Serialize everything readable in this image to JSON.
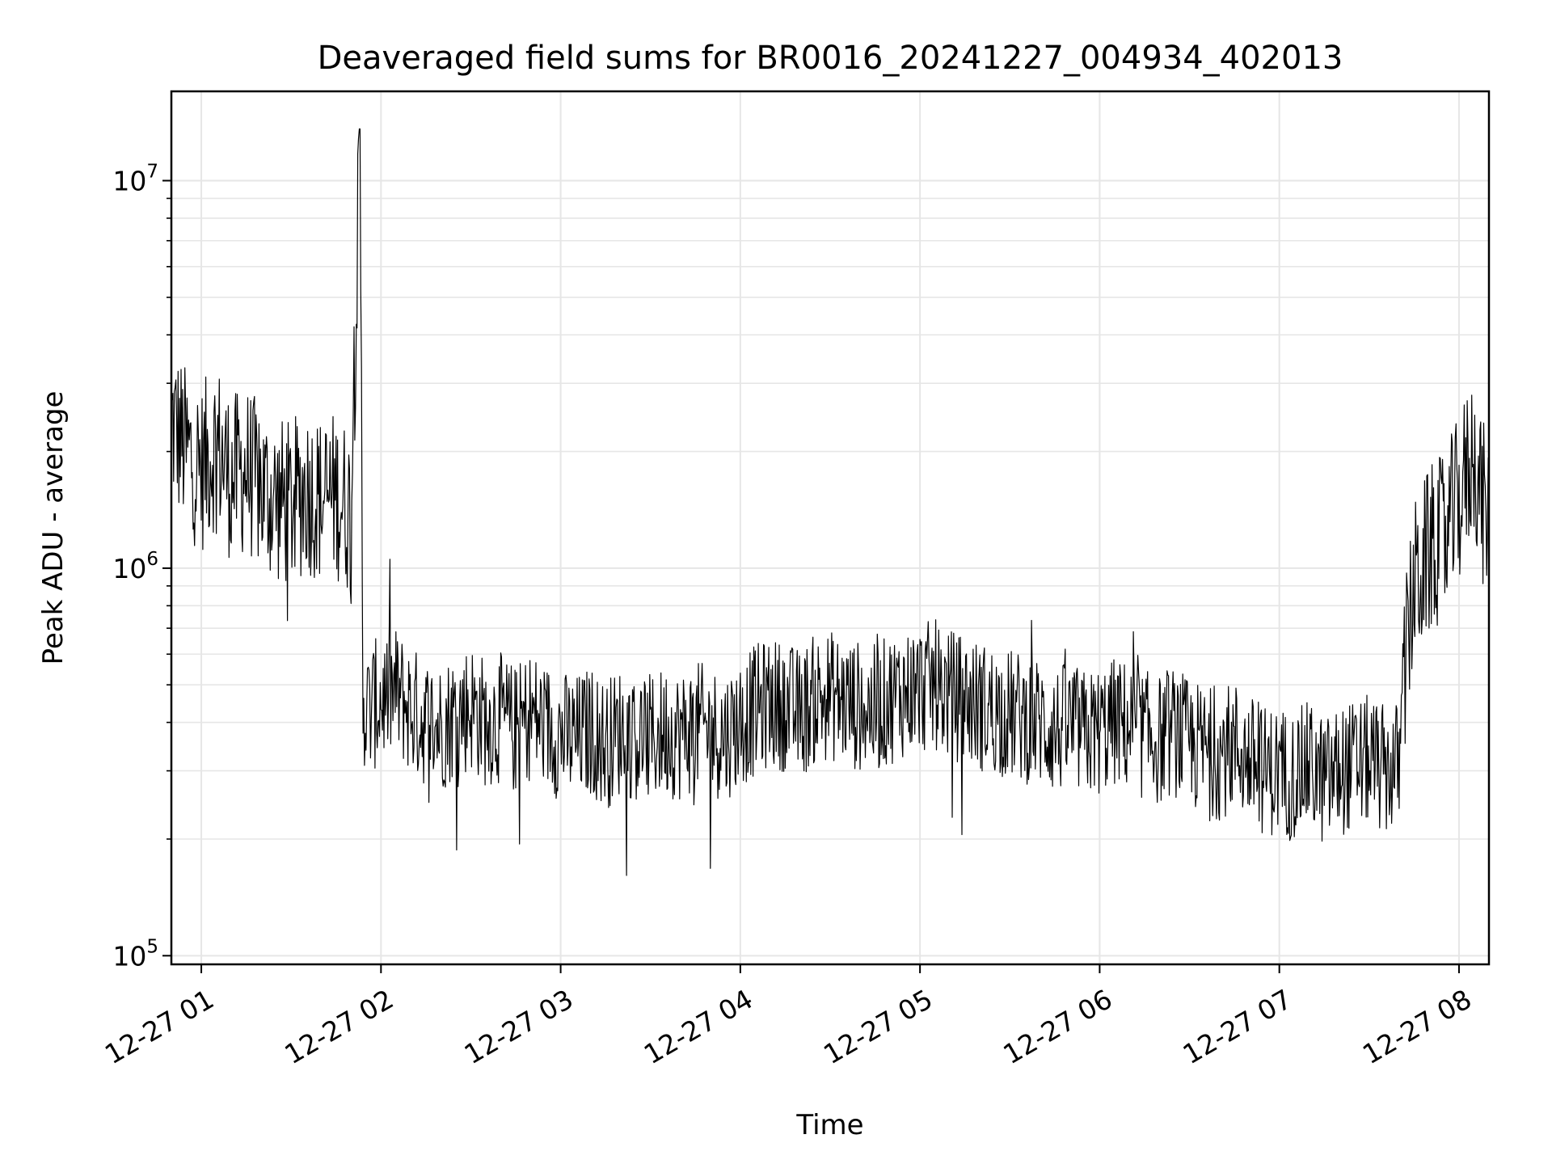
{
  "chart_data": {
    "type": "line",
    "title": "Deaveraged field sums for BR0016_20241227_004934_402013",
    "xlabel": "Time",
    "ylabel": "Peak ADU - average",
    "yscale": "log",
    "xlim": [
      "12-27 00:50",
      "12-27 08:10"
    ],
    "ylim": [
      95000,
      17000000
    ],
    "grid": true,
    "colors": {
      "line": "#000000",
      "grid": "#e6e6e6"
    },
    "x_ticks": [
      "12-27 01",
      "12-27 02",
      "12-27 03",
      "12-27 04",
      "12-27 05",
      "12-27 06",
      "12-27 07",
      "12-27 08"
    ],
    "y_ticks": [
      {
        "base": "10",
        "exp": "5",
        "value": 100000
      },
      {
        "base": "10",
        "exp": "6",
        "value": 1000000
      },
      {
        "base": "10",
        "exp": "7",
        "value": 10000000
      }
    ],
    "series": [
      {
        "color": "#000000",
        "x": [
          "00:50",
          "00:55",
          "01:00",
          "01:05",
          "01:10",
          "01:15",
          "01:20",
          "01:25",
          "01:30",
          "01:35",
          "01:40",
          "01:45",
          "01:50",
          "01:53",
          "01:54",
          "01:55",
          "02:00",
          "02:05",
          "02:10",
          "02:15",
          "02:20",
          "02:25",
          "02:30",
          "02:35",
          "02:40",
          "02:45",
          "02:50",
          "02:55",
          "03:00",
          "03:05",
          "03:10",
          "03:15",
          "03:20",
          "03:25",
          "03:30",
          "03:35",
          "03:40",
          "03:45",
          "03:50",
          "03:55",
          "04:00",
          "04:05",
          "04:10",
          "04:15",
          "04:20",
          "04:25",
          "04:30",
          "04:35",
          "04:40",
          "04:45",
          "04:50",
          "04:55",
          "05:00",
          "05:05",
          "05:10",
          "05:15",
          "05:20",
          "05:25",
          "05:30",
          "05:35",
          "05:40",
          "05:45",
          "05:50",
          "05:55",
          "06:00",
          "06:05",
          "06:10",
          "06:15",
          "06:20",
          "06:25",
          "06:30",
          "06:35",
          "06:40",
          "06:45",
          "06:50",
          "06:55",
          "07:00",
          "07:05",
          "07:10",
          "07:15",
          "07:20",
          "07:25",
          "07:30",
          "07:35",
          "07:40",
          "07:42",
          "07:45",
          "07:50",
          "07:55",
          "08:00",
          "08:05",
          "08:10"
        ],
        "y": [
          2400000,
          2000000,
          1800000,
          2100000,
          1700000,
          1800000,
          1600000,
          1500000,
          1450000,
          1600000,
          1500000,
          1550000,
          1400000,
          12500000,
          480000,
          420000,
          460000,
          480000,
          430000,
          400000,
          390000,
          420000,
          440000,
          400000,
          410000,
          380000,
          420000,
          390000,
          370000,
          360000,
          380000,
          350000,
          380000,
          370000,
          360000,
          380000,
          370000,
          390000,
          380000,
          370000,
          400000,
          430000,
          450000,
          440000,
          420000,
          460000,
          470000,
          450000,
          440000,
          430000,
          460000,
          480000,
          490000,
          500000,
          470000,
          460000,
          440000,
          430000,
          420000,
          410000,
          400000,
          380000,
          390000,
          370000,
          380000,
          400000,
          390000,
          370000,
          360000,
          380000,
          350000,
          340000,
          330000,
          350000,
          320000,
          300000,
          300000,
          290000,
          310000,
          280000,
          300000,
          310000,
          320000,
          300000,
          310000,
          560000,
          900000,
          1100000,
          1200000,
          1500000,
          2000000,
          1200000
        ]
      }
    ]
  }
}
